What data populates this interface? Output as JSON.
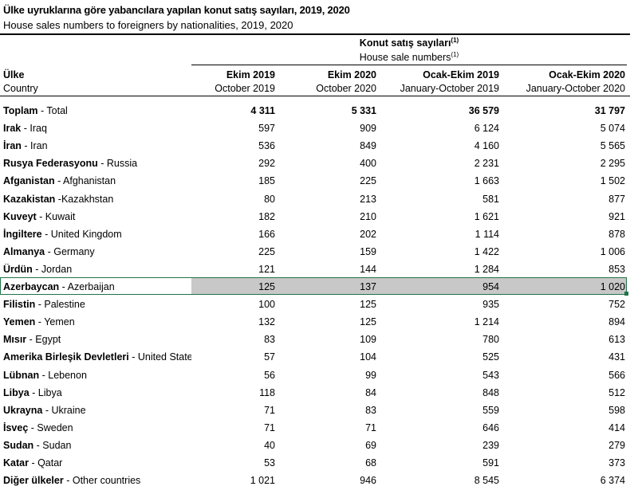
{
  "title_tr": "Ülke uyruklarına göre yabancılara yapılan konut satış sayıları, 2019, 2020",
  "title_en": "House sales numbers to foreigners by nationalities, 2019, 2020",
  "group_tr": "Konut satış sayıları",
  "group_en": "House sale numbers",
  "footnote": "(1)",
  "col_label_tr": "Ülke",
  "col_label_en": "Country",
  "columns": [
    {
      "tr": "Ekim 2019",
      "en": "October 2019"
    },
    {
      "tr": "Ekim 2020",
      "en": "October 2020"
    },
    {
      "tr": "Ocak-Ekim 2019",
      "en": "January-October 2019"
    },
    {
      "tr": "Ocak-Ekim 2020",
      "en": "January-October 2020"
    }
  ],
  "selected_row": "Azerbaycan",
  "selection_color": "#217346",
  "rows": [
    {
      "tr": "Toplam",
      "en": " - Total",
      "v": [
        "4 311",
        "5 331",
        "36 579",
        "31 797"
      ],
      "bold": true
    },
    {
      "tr": "Irak",
      "en": " - Iraq",
      "v": [
        "597",
        "909",
        "6 124",
        "5 074"
      ]
    },
    {
      "tr": "İran",
      "en": " - Iran",
      "v": [
        "536",
        "849",
        "4 160",
        "5 565"
      ]
    },
    {
      "tr": "Rusya Federasyonu",
      "en": " - Russia",
      "v": [
        "292",
        "400",
        "2 231",
        "2 295"
      ]
    },
    {
      "tr": "Afganistan",
      "en": " - Afghanistan",
      "v": [
        "185",
        "225",
        "1 663",
        "1 502"
      ]
    },
    {
      "tr": "Kazakistan",
      "en": " -Kazakhstan",
      "v": [
        "80",
        "213",
        "581",
        "877"
      ]
    },
    {
      "tr": "Kuveyt",
      "en": " - Kuwait",
      "v": [
        "182",
        "210",
        "1 621",
        "921"
      ]
    },
    {
      "tr": "İngiltere",
      "en": " - United Kingdom",
      "v": [
        "166",
        "202",
        "1 114",
        "878"
      ]
    },
    {
      "tr": "Almanya",
      "en": " - Germany",
      "v": [
        "225",
        "159",
        "1 422",
        "1 006"
      ]
    },
    {
      "tr": "Ürdün",
      "en": " - Jordan",
      "v": [
        "121",
        "144",
        "1 284",
        "853"
      ]
    },
    {
      "tr": "Azerbaycan",
      "en": " - Azerbaijan",
      "v": [
        "125",
        "137",
        "954",
        "1 020"
      ]
    },
    {
      "tr": "Filistin",
      "en": " - Palestine",
      "v": [
        "100",
        "125",
        "935",
        "752"
      ]
    },
    {
      "tr": "Yemen",
      "en": " - Yemen",
      "v": [
        "132",
        "125",
        "1 214",
        "894"
      ]
    },
    {
      "tr": "Mısır",
      "en": " - Egypt",
      "v": [
        "83",
        "109",
        "780",
        "613"
      ]
    },
    {
      "tr": "Amerika Birleşik Devletleri",
      "en": " - United States",
      "v": [
        "57",
        "104",
        "525",
        "431"
      ]
    },
    {
      "tr": "Lübnan",
      "en": " - Lebenon",
      "v": [
        "56",
        "99",
        "543",
        "566"
      ]
    },
    {
      "tr": "Libya",
      "en": " - Libya",
      "v": [
        "118",
        "84",
        "848",
        "512"
      ]
    },
    {
      "tr": "Ukrayna",
      "en": " - Ukraine",
      "v": [
        "71",
        "83",
        "559",
        "598"
      ]
    },
    {
      "tr": "İsveç",
      "en": " - Sweden",
      "v": [
        "71",
        "71",
        "646",
        "414"
      ]
    },
    {
      "tr": "Sudan",
      "en": " - Sudan",
      "v": [
        "40",
        "69",
        "239",
        "279"
      ]
    },
    {
      "tr": "Katar",
      "en": " - Qatar",
      "v": [
        "53",
        "68",
        "591",
        "373"
      ]
    },
    {
      "tr": "Diğer ülkeler",
      "en": " - Other countries",
      "v": [
        "1 021",
        "946",
        "8 545",
        "6 374"
      ]
    }
  ]
}
